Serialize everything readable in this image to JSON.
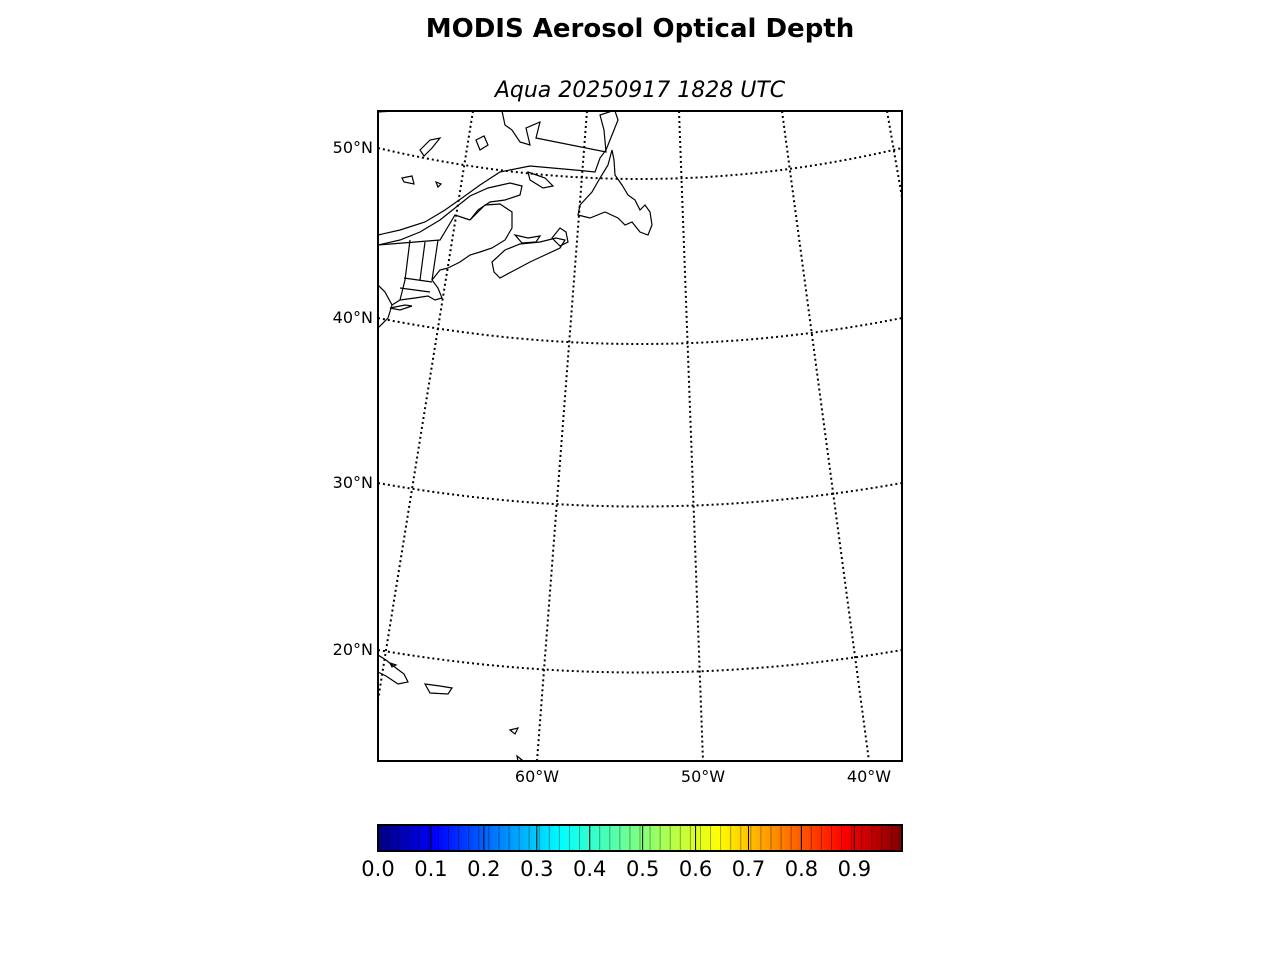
{
  "title": "MODIS Aerosol Optical Depth",
  "subtitle": "Aqua 20250917 1828 UTC",
  "map": {
    "projection": "lambert conformal",
    "parallels": [
      "50°N",
      "40°N",
      "30°N",
      "20°N"
    ],
    "meridians": [
      "60°W",
      "50°W",
      "40°W"
    ],
    "gridline_style": "dotted",
    "land_outline": "black coastlines, no fill",
    "visible_landmasses": [
      "Northeastern North America",
      "Newfoundland",
      "Nova Scotia",
      "Hispaniola",
      "Puerto Rico",
      "Lesser Antilles"
    ]
  },
  "colorbar": {
    "colormap": "jet",
    "colors": [
      "#00007f",
      "#0000ff",
      "#007fff",
      "#00ffff",
      "#7fff7f",
      "#ffff00",
      "#ff7f00",
      "#ff0000",
      "#7f0000"
    ],
    "min": 0.0,
    "max": 0.99,
    "ticks": [
      "0.0",
      "0.1",
      "0.2",
      "0.3",
      "0.4",
      "0.5",
      "0.6",
      "0.7",
      "0.8",
      "0.9"
    ]
  }
}
